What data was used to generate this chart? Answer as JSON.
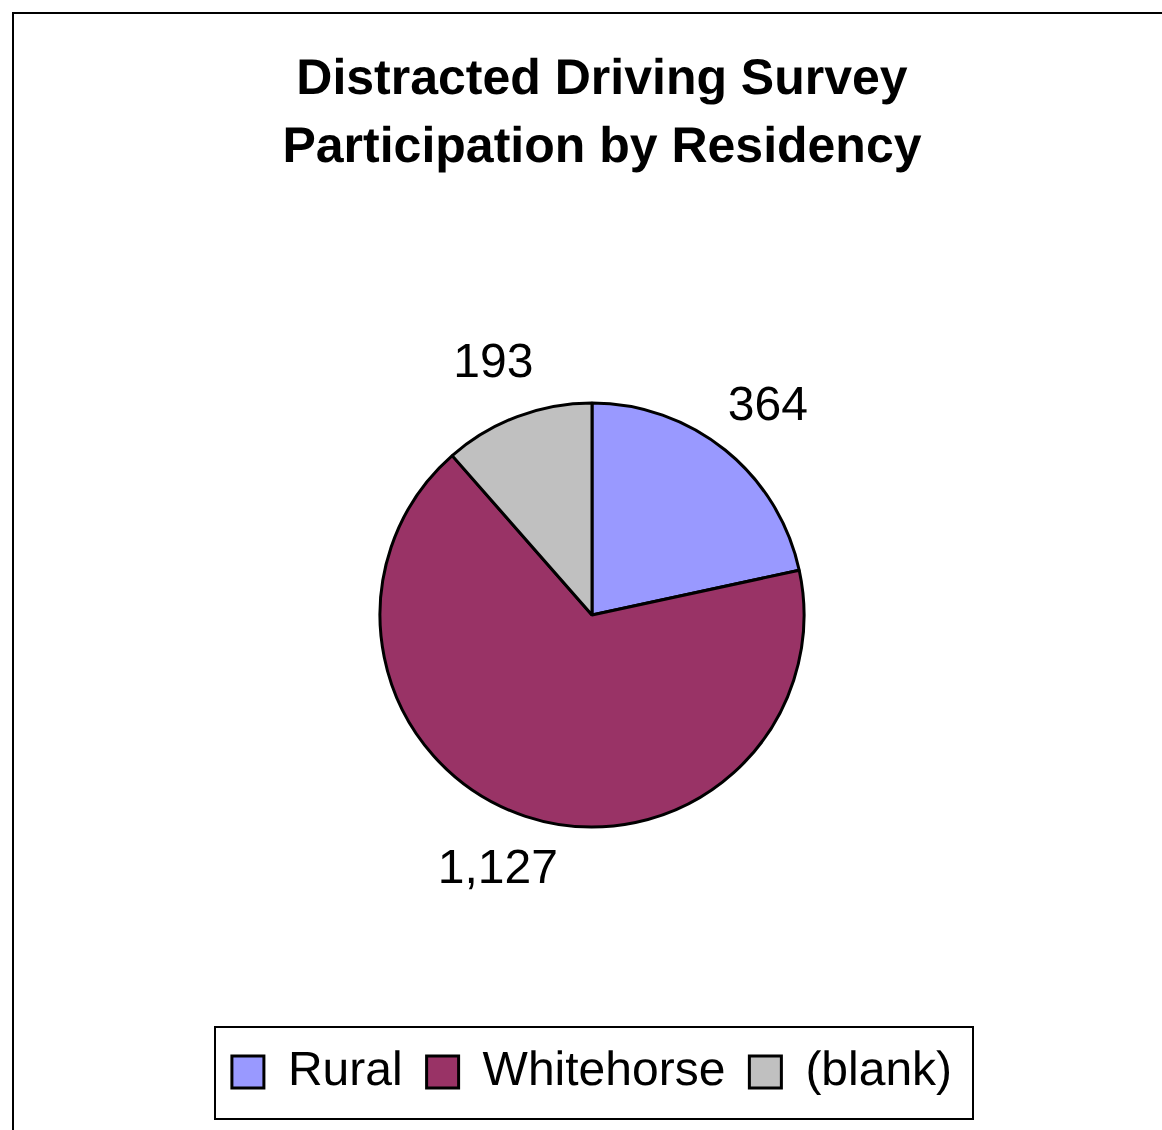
{
  "chart_data": {
    "type": "pie",
    "title": "Distracted Driving Survey Participation by Residency",
    "categories": [
      "Rural",
      "Whitehorse",
      "(blank)"
    ],
    "values": [
      364,
      1127,
      193
    ],
    "colors": [
      "#9999ff",
      "#993366",
      "#c0c0c0"
    ],
    "value_labels": [
      "364",
      "1,127",
      "193"
    ],
    "legend": "bottom"
  }
}
